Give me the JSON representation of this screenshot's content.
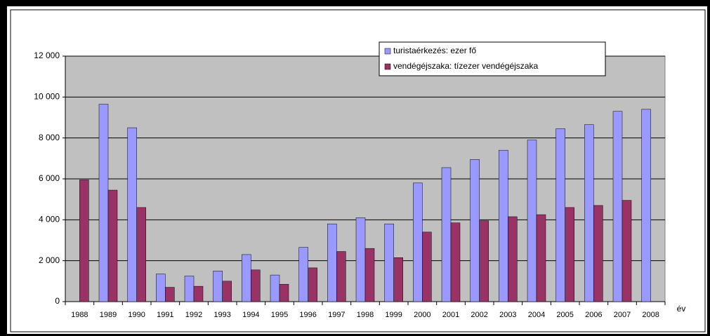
{
  "chart_data": {
    "type": "bar",
    "categories": [
      "1988",
      "1989",
      "1990",
      "1991",
      "1992",
      "1993",
      "1994",
      "1995",
      "1996",
      "1997",
      "1998",
      "1999",
      "2000",
      "2001",
      "2002",
      "2003",
      "2004",
      "2005",
      "2006",
      "2007",
      "2008"
    ],
    "series": [
      {
        "name": "turistaérkezés: ezer fő",
        "color": "#9999ff",
        "values": [
          null,
          9650,
          8500,
          1350,
          1250,
          1500,
          2300,
          1300,
          2650,
          3800,
          4100,
          3800,
          5800,
          6550,
          6950,
          7400,
          7900,
          8450,
          8650,
          9300,
          9400
        ]
      },
      {
        "name": "vendégéjszaka: tízezer vendégéjszaka",
        "color": "#993366",
        "values": [
          5950,
          5450,
          4600,
          700,
          750,
          1000,
          1550,
          850,
          1650,
          2450,
          2600,
          2150,
          3400,
          3850,
          3950,
          4150,
          4250,
          4600,
          4700,
          4950,
          null
        ]
      }
    ],
    "x_label": "év",
    "ylim": [
      0,
      12000
    ],
    "yticks": [
      {
        "value": 0,
        "label": "0"
      },
      {
        "value": 2000,
        "label": "2 000"
      },
      {
        "value": 4000,
        "label": "4 000"
      },
      {
        "value": 6000,
        "label": "6 000"
      },
      {
        "value": 8000,
        "label": "8 000"
      },
      {
        "value": 10000,
        "label": "10 000"
      },
      {
        "value": 12000,
        "label": "12 000"
      }
    ],
    "grid": true,
    "plot_background": "#c0c0c0",
    "legend": "top-right"
  }
}
